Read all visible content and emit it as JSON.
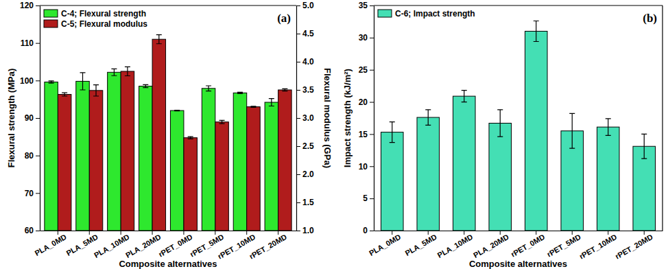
{
  "chart_data": [
    {
      "type": "bar",
      "title": "(a)",
      "categories": [
        "PLA_0MD",
        "PLA_5MD",
        "PLA_10MD",
        "PLA_20MD",
        "rPET_0MD",
        "rPET_5MD",
        "rPET_10MD",
        "rPET_20MD"
      ],
      "xlabel": "Composite alternatives",
      "ylabel": "Flexural strength (MPa)",
      "y2label": "Flexural modulus (GPa)",
      "ylim": [
        60,
        120
      ],
      "yticks": [
        60,
        70,
        80,
        90,
        100,
        110,
        120
      ],
      "y2lim": [
        1,
        5
      ],
      "y2ticks": [
        {
          "value": 1,
          "label": "1.0"
        },
        1.5,
        {
          "value": 2,
          "label": "2.0"
        },
        2.5,
        {
          "value": 3,
          "label": "3.0"
        },
        3.5,
        {
          "value": 4,
          "label": "4.0"
        },
        4.5,
        {
          "value": 5,
          "label": "5.0"
        }
      ],
      "legend": "top-left",
      "series": [
        {
          "name": "C-4; Flexural strength",
          "color": "#2ee82e",
          "values": [
            99.6,
            99.8,
            102.2,
            98.5,
            92.0,
            97.9,
            96.7,
            94.2
          ],
          "errors": [
            0.3,
            2.3,
            0.9,
            0.4,
            0.1,
            0.7,
            0.2,
            1.0
          ]
        },
        {
          "name": "C-5; Flexural modulus",
          "color": "#b01c1c",
          "axis": "y2",
          "values": [
            3.42,
            3.49,
            3.83,
            4.4,
            2.65,
            2.93,
            3.2,
            3.5
          ],
          "errors": [
            0.03,
            0.1,
            0.08,
            0.08,
            0.02,
            0.03,
            0.01,
            0.02
          ]
        }
      ]
    },
    {
      "type": "bar",
      "title": "(b)",
      "categories": [
        "PLA_0MD",
        "PLA_5MD",
        "PLA_10MD",
        "PLA_20MD",
        "rPET_0MD",
        "rPET_5MD",
        "rPET_10MD",
        "rPET_20MD"
      ],
      "xlabel": "Composite alternatives",
      "ylabel": "Impact strength (kJ/m²)",
      "ylim": [
        0,
        35
      ],
      "yticks": [
        0,
        5,
        10,
        15,
        20,
        25,
        30,
        35
      ],
      "legend": "top-left",
      "series": [
        {
          "name": "C-6; Impact strength",
          "color": "#44dfb4",
          "values": [
            15.3,
            17.6,
            20.9,
            16.7,
            31.0,
            15.5,
            16.1,
            13.1
          ],
          "errors": [
            1.6,
            1.2,
            0.9,
            2.1,
            1.6,
            2.7,
            1.3,
            1.9
          ]
        }
      ]
    }
  ]
}
